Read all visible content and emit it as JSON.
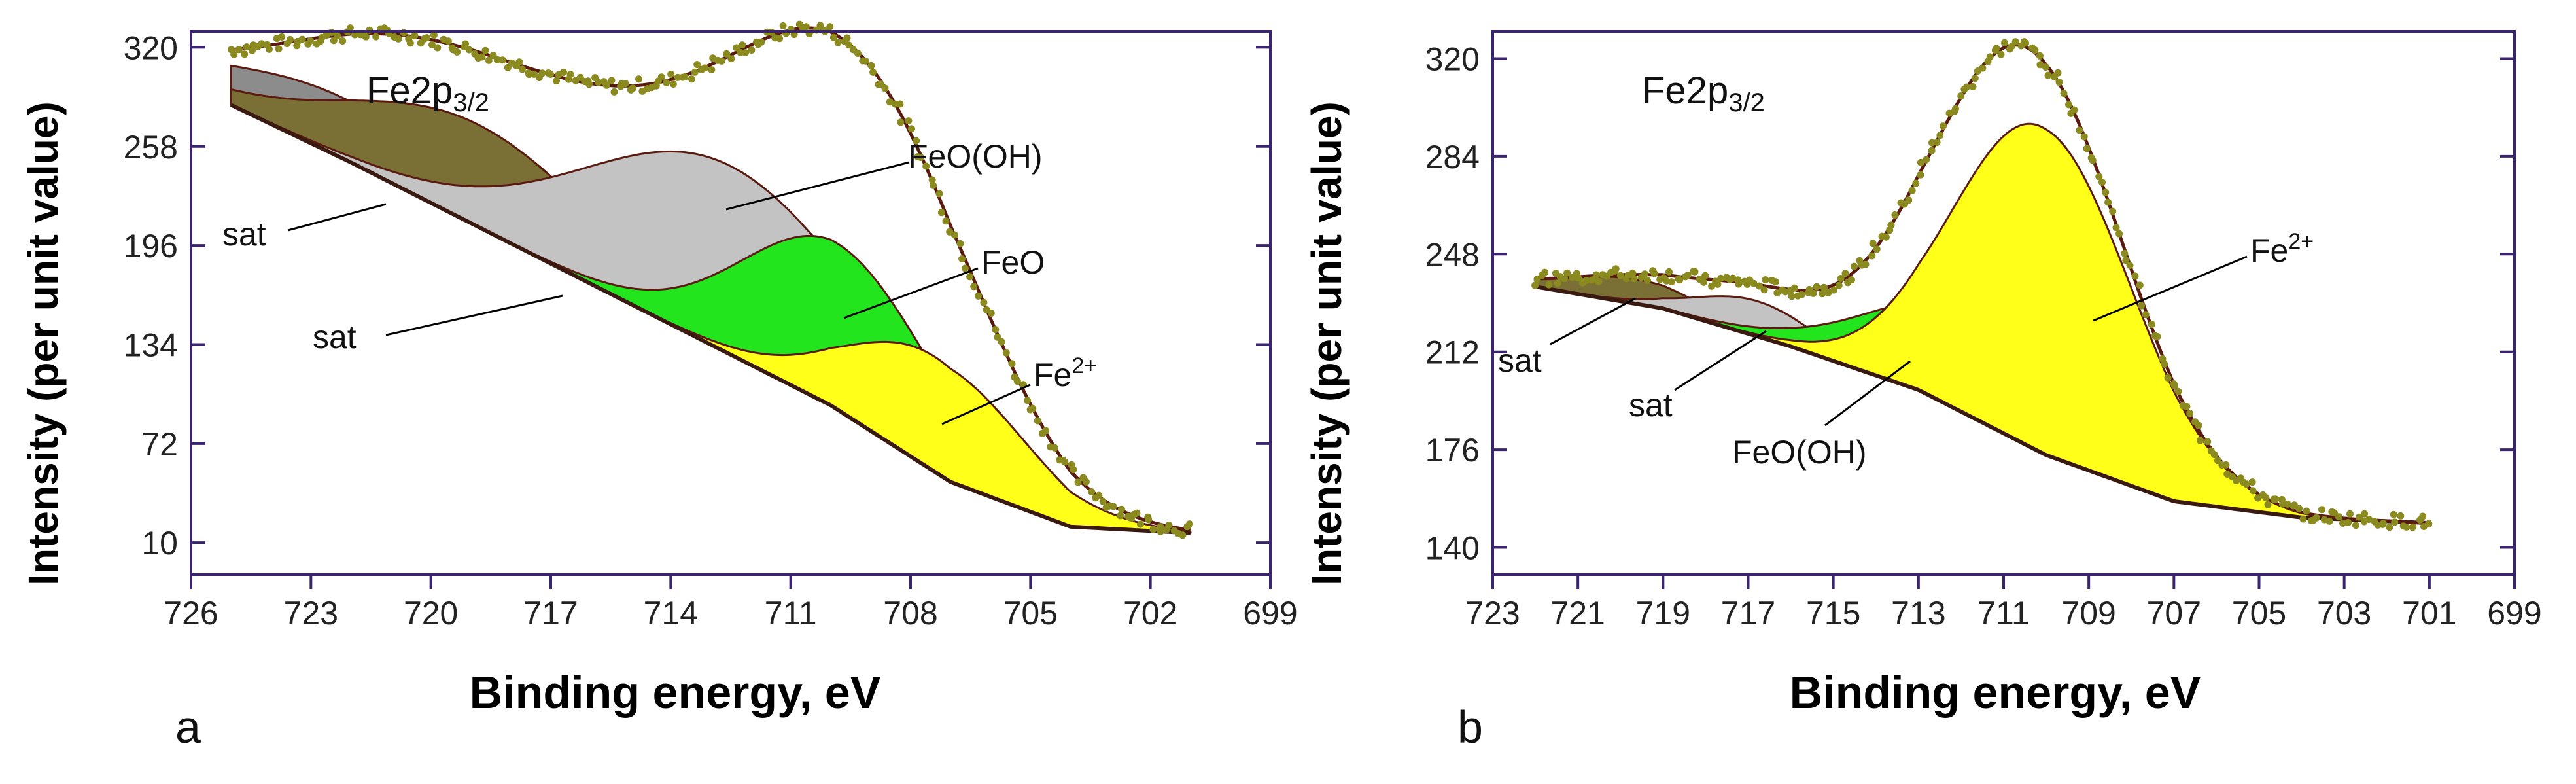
{
  "chart_data": [
    {
      "panel_label": "a",
      "type": "area",
      "title": "Fe2p3/2",
      "title_main": "Fe2p",
      "title_sub": "3/2",
      "xlabel": "Binding energy, eV",
      "ylabel": "Intensity (per unit value)",
      "xlim": [
        726,
        699
      ],
      "ylim": [
        -10,
        330
      ],
      "x_reversed": true,
      "xticks": [
        726,
        723,
        720,
        717,
        714,
        711,
        708,
        705,
        702,
        699
      ],
      "yticks": [
        10,
        72,
        134,
        196,
        258,
        320
      ],
      "background": {
        "name": "",
        "x": [
          725,
          722,
          719,
          716,
          713,
          710,
          707,
          704,
          701
        ],
        "y": [
          284,
          248,
          210,
          172,
          134,
          96,
          48,
          20,
          16
        ]
      },
      "components": [
        {
          "label": "sat",
          "center": 722.2,
          "height": 38,
          "width": 3.0,
          "color": "#8c8c8c"
        },
        {
          "label": "sat",
          "center": 718.8,
          "height": 64,
          "width": 3.2,
          "color": "#7a6f35"
        },
        {
          "label": "FeO(OH)",
          "center": 712.5,
          "height": 118,
          "width": 3.6,
          "color": "#c3c3c3"
        },
        {
          "label": "FeO",
          "center": 709.8,
          "height": 104,
          "width": 2.4,
          "color": "#22e51e"
        },
        {
          "label": "Fe2+",
          "center": 707.4,
          "height": 72,
          "width": 2.2,
          "color": "#ffff1a"
        }
      ],
      "envelope_peak": {
        "x": 710.8,
        "y": 316
      },
      "annotations": [
        "sat",
        "sat",
        "FeO(OH)",
        "FeO",
        "Fe2+"
      ],
      "colors": {
        "frame": "#3a2470",
        "envelope": "#5a1a10",
        "points": "#8a8a1f"
      }
    },
    {
      "panel_label": "b",
      "type": "area",
      "title": "Fe2p3/2",
      "title_main": "Fe2p",
      "title_sub": "3/2",
      "xlabel": "Binding energy, eV",
      "ylabel": "Intensity (per unit value)",
      "xlim": [
        723,
        699
      ],
      "ylim": [
        130,
        330
      ],
      "x_reversed": true,
      "xticks": [
        723,
        721,
        719,
        717,
        715,
        713,
        711,
        709,
        707,
        705,
        703,
        701,
        699
      ],
      "yticks": [
        140,
        176,
        212,
        248,
        284,
        320
      ],
      "background": {
        "name": "",
        "x": [
          722,
          719,
          716,
          713,
          710,
          707,
          704,
          701
        ],
        "y": [
          236,
          228,
          214,
          198,
          174,
          157,
          151,
          149
        ]
      },
      "components": [
        {
          "label": "sat",
          "center": 719.6,
          "height": 9,
          "width": 1.6,
          "color": "#7a6f35"
        },
        {
          "label": "sat",
          "center": 716.8,
          "height": 13,
          "width": 1.4,
          "color": "#c3c3c3"
        },
        {
          "label": "FeO(OH)",
          "center": 712.0,
          "height": 36,
          "width": 2.2,
          "color": "#22e51e"
        },
        {
          "label": "Fe2+",
          "center": 710.1,
          "height": 120,
          "width": 2.1,
          "color": "#ffff1a"
        }
      ],
      "envelope_peak": {
        "x": 710.5,
        "y": 314
      },
      "annotations": [
        "sat",
        "sat",
        "FeO(OH)",
        "Fe2+"
      ],
      "colors": {
        "frame": "#3a2470",
        "envelope": "#5a1a10",
        "points": "#8a8a1f"
      }
    }
  ]
}
